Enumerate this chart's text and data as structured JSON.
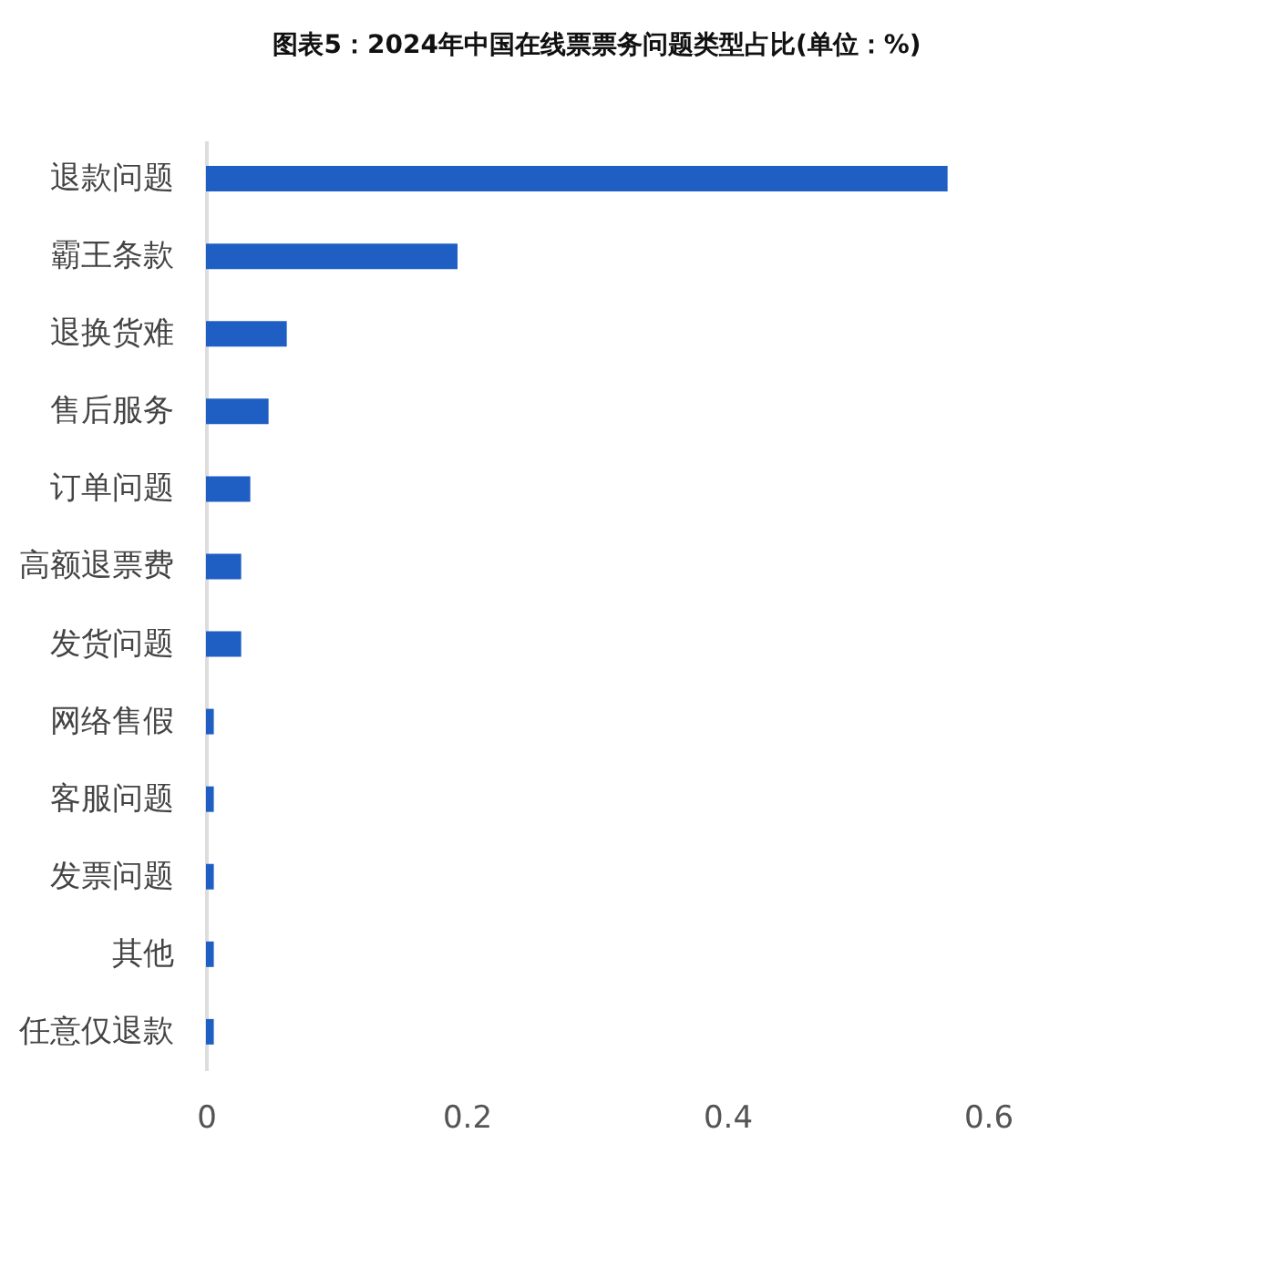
{
  "chart_data": {
    "type": "bar",
    "orientation": "horizontal",
    "title": "图表5：2024年中国在线票票务问题类型占比(单位：%)",
    "categories": [
      "退款问题",
      "霸王条款",
      "退换货难",
      "售后服务",
      "订单问题",
      "高额退票费",
      "发货问题",
      "网络售假",
      "客服问题",
      "发票问题",
      "其他",
      "任意仅退款"
    ],
    "values": [
      0.569,
      0.193,
      0.062,
      0.048,
      0.034,
      0.027,
      0.027,
      0.006,
      0.006,
      0.006,
      0.006,
      0.006
    ],
    "color": "#1f5fc4",
    "xlim": [
      0,
      0.6
    ],
    "xticks": [
      0,
      0.2,
      0.4,
      0.6
    ],
    "grid": false
  }
}
